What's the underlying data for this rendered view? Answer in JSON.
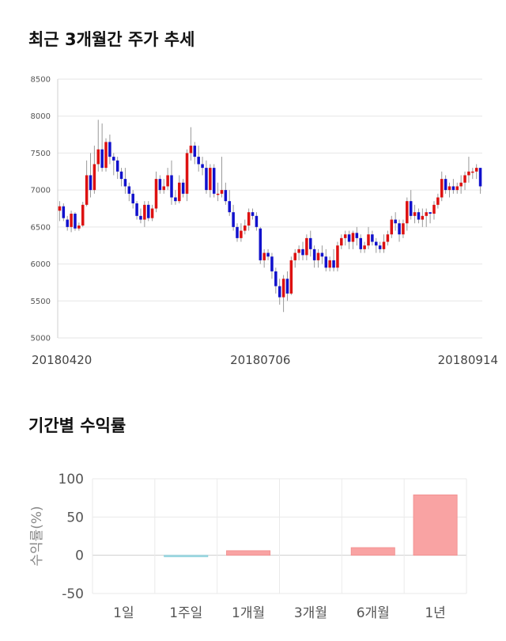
{
  "price_section": {
    "title": "최근 3개월간 주가 추세"
  },
  "returns_section": {
    "title": "기간별 수익률"
  },
  "chart_data": [
    {
      "type": "candlestick",
      "ylim": [
        5000,
        8500
      ],
      "yticks": [
        5000,
        5500,
        6000,
        6500,
        7000,
        7500,
        8000,
        8500
      ],
      "xlabels": [
        {
          "label": "20180420",
          "index": 0
        },
        {
          "label": "20180706",
          "index": 52
        },
        {
          "label": "20180914",
          "index": 98
        }
      ],
      "grid": true,
      "up_color": "#dd1111",
      "down_color": "#1111cc",
      "candles": [
        [
          6720,
          6850,
          6580,
          6780
        ],
        [
          6780,
          6820,
          6580,
          6620
        ],
        [
          6600,
          6650,
          6450,
          6500
        ],
        [
          6500,
          6720,
          6430,
          6680
        ],
        [
          6680,
          6700,
          6450,
          6480
        ],
        [
          6480,
          6560,
          6450,
          6520
        ],
        [
          6520,
          6840,
          6500,
          6800
        ],
        [
          6800,
          7400,
          6780,
          7200
        ],
        [
          7200,
          7500,
          6900,
          7000
        ],
        [
          7000,
          7600,
          6950,
          7350
        ],
        [
          7350,
          7950,
          7250,
          7550
        ],
        [
          7550,
          7900,
          7250,
          7300
        ],
        [
          7300,
          7700,
          7250,
          7650
        ],
        [
          7650,
          7750,
          7350,
          7450
        ],
        [
          7450,
          7500,
          7200,
          7400
        ],
        [
          7400,
          7450,
          7150,
          7250
        ],
        [
          7250,
          7300,
          7050,
          7150
        ],
        [
          7150,
          7300,
          6950,
          7050
        ],
        [
          7050,
          7100,
          6850,
          6950
        ],
        [
          6950,
          7000,
          6750,
          6820
        ],
        [
          6820,
          6850,
          6600,
          6650
        ],
        [
          6650,
          6750,
          6550,
          6600
        ],
        [
          6600,
          6850,
          6500,
          6800
        ],
        [
          6800,
          6850,
          6580,
          6620
        ],
        [
          6620,
          6800,
          6580,
          6750
        ],
        [
          6750,
          7250,
          6700,
          7150
        ],
        [
          7150,
          7200,
          6950,
          7000
        ],
        [
          7000,
          7150,
          6950,
          7050
        ],
        [
          7050,
          7300,
          7000,
          7200
        ],
        [
          7200,
          7400,
          6800,
          6900
        ],
        [
          6900,
          7000,
          6800,
          6850
        ],
        [
          6850,
          7200,
          6820,
          7100
        ],
        [
          7100,
          7150,
          6900,
          6950
        ],
        [
          6950,
          7550,
          6850,
          7500
        ],
        [
          7500,
          7850,
          7400,
          7600
        ],
        [
          7600,
          7650,
          7350,
          7450
        ],
        [
          7450,
          7600,
          7250,
          7350
        ],
        [
          7350,
          7450,
          7200,
          7300
        ],
        [
          7300,
          7400,
          6950,
          7000
        ],
        [
          7000,
          7350,
          6900,
          7300
        ],
        [
          7300,
          7350,
          6900,
          6950
        ],
        [
          6950,
          7100,
          6850,
          6950
        ],
        [
          6950,
          7450,
          6900,
          7000
        ],
        [
          7000,
          7100,
          6800,
          6850
        ],
        [
          6850,
          7000,
          6650,
          6700
        ],
        [
          6700,
          6800,
          6450,
          6500
        ],
        [
          6500,
          6550,
          6300,
          6350
        ],
        [
          6350,
          6550,
          6300,
          6450
        ],
        [
          6450,
          6600,
          6400,
          6520
        ],
        [
          6520,
          6750,
          6450,
          6700
        ],
        [
          6700,
          6750,
          6600,
          6650
        ],
        [
          6650,
          6700,
          6450,
          6500
        ],
        [
          6480,
          6500,
          6000,
          6050
        ],
        [
          6050,
          6200,
          5950,
          6150
        ],
        [
          6150,
          6200,
          6050,
          6100
        ],
        [
          6100,
          6150,
          5800,
          5900
        ],
        [
          5900,
          5950,
          5600,
          5700
        ],
        [
          5700,
          5800,
          5450,
          5550
        ],
        [
          5550,
          5850,
          5350,
          5800
        ],
        [
          5800,
          5900,
          5500,
          5600
        ],
        [
          5600,
          6100,
          5580,
          6050
        ],
        [
          6050,
          6200,
          5950,
          6150
        ],
        [
          6150,
          6250,
          6050,
          6200
        ],
        [
          6200,
          6300,
          6050,
          6120
        ],
        [
          6120,
          6400,
          6050,
          6350
        ],
        [
          6350,
          6450,
          6100,
          6200
        ],
        [
          6200,
          6250,
          5950,
          6050
        ],
        [
          6050,
          6200,
          5950,
          6150
        ],
        [
          6150,
          6250,
          6000,
          6100
        ],
        [
          6100,
          6200,
          5900,
          5950
        ],
        [
          5950,
          6100,
          5900,
          6050
        ],
        [
          6050,
          6200,
          5900,
          5950
        ],
        [
          5950,
          6300,
          5900,
          6250
        ],
        [
          6250,
          6400,
          6200,
          6350
        ],
        [
          6350,
          6450,
          6250,
          6400
        ],
        [
          6400,
          6450,
          6200,
          6300
        ],
        [
          6300,
          6450,
          6200,
          6420
        ],
        [
          6420,
          6500,
          6250,
          6350
        ],
        [
          6350,
          6400,
          6150,
          6200
        ],
        [
          6200,
          6300,
          6150,
          6250
        ],
        [
          6250,
          6500,
          6200,
          6400
        ],
        [
          6400,
          6450,
          6250,
          6300
        ],
        [
          6300,
          6350,
          6150,
          6250
        ],
        [
          6250,
          6300,
          6150,
          6200
        ],
        [
          6200,
          6400,
          6150,
          6300
        ],
        [
          6300,
          6450,
          6250,
          6400
        ],
        [
          6400,
          6650,
          6350,
          6600
        ],
        [
          6600,
          6700,
          6450,
          6550
        ],
        [
          6550,
          6600,
          6300,
          6400
        ],
        [
          6400,
          6600,
          6350,
          6550
        ],
        [
          6550,
          6900,
          6450,
          6850
        ],
        [
          6850,
          7000,
          6600,
          6650
        ],
        [
          6650,
          6800,
          6550,
          6700
        ],
        [
          6700,
          6750,
          6550,
          6600
        ],
        [
          6600,
          6750,
          6500,
          6650
        ],
        [
          6650,
          6750,
          6500,
          6700
        ],
        [
          6700,
          6700,
          6550,
          6680
        ],
        [
          6680,
          6850,
          6600,
          6800
        ],
        [
          6800,
          6950,
          6750,
          6900
        ],
        [
          6900,
          7250,
          6850,
          7150
        ],
        [
          7150,
          7200,
          6950,
          7000
        ],
        [
          7000,
          7100,
          6900,
          7050
        ],
        [
          7050,
          7150,
          6950,
          7000
        ],
        [
          7000,
          7100,
          6950,
          7050
        ],
        [
          7050,
          7200,
          6950,
          7100
        ],
        [
          7100,
          7250,
          7000,
          7200
        ],
        [
          7200,
          7450,
          7100,
          7250
        ],
        [
          7250,
          7300,
          7150,
          7250
        ],
        [
          7250,
          7350,
          7150,
          7300
        ],
        [
          7300,
          7300,
          6950,
          7050
        ]
      ]
    },
    {
      "type": "bar",
      "ylabel": "수익률(%)",
      "ylim": [
        -50,
        100
      ],
      "yticks": [
        -50,
        0,
        50,
        100
      ],
      "categories": [
        "1일",
        "1주일",
        "1개월",
        "3개월",
        "6개월",
        "1년"
      ],
      "values": [
        0,
        -2,
        6,
        0,
        10,
        79
      ],
      "positive_color": "#f9a3a3",
      "negative_color": "#a8dde6",
      "grid": true
    }
  ]
}
